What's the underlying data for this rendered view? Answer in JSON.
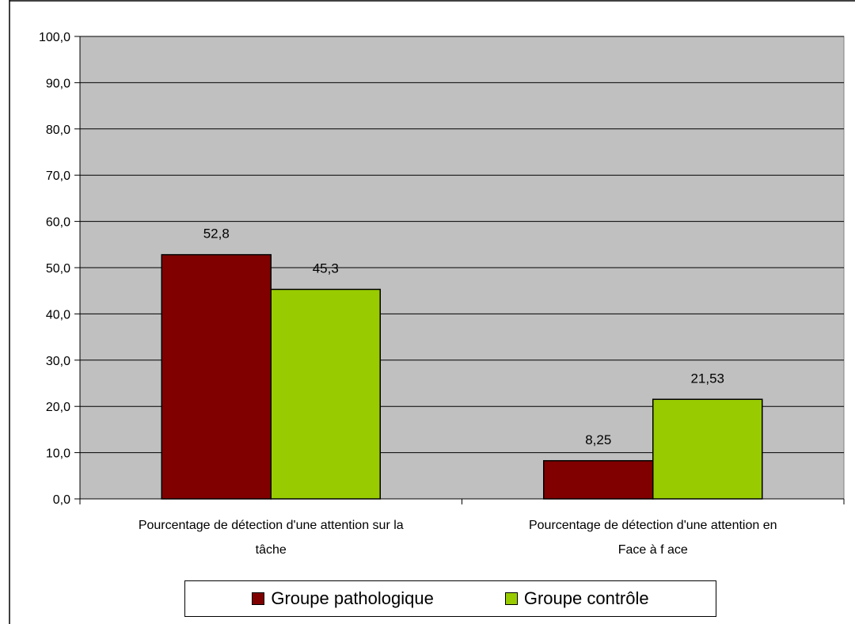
{
  "chart_data": {
    "type": "bar",
    "categories": [
      [
        "Pourcentage de détection d'une attention sur la",
        "tâche"
      ],
      [
        "Pourcentage de détection d'une attention en",
        "Face à f ace"
      ]
    ],
    "series": [
      {
        "name": "Groupe pathologique",
        "color": "#800000",
        "values": [
          52.8,
          8.25
        ],
        "labels": [
          "52,8",
          "8,25"
        ]
      },
      {
        "name": "Groupe contrôle",
        "color": "#99CC00",
        "values": [
          45.3,
          21.53
        ],
        "labels": [
          "45,3",
          "21,53"
        ]
      }
    ],
    "ylim": [
      0,
      100
    ],
    "yticks": [
      {
        "value": 0,
        "label": "0,0"
      },
      {
        "value": 10,
        "label": "10,0"
      },
      {
        "value": 20,
        "label": "20,0"
      },
      {
        "value": 30,
        "label": "30,0"
      },
      {
        "value": 40,
        "label": "40,0"
      },
      {
        "value": 50,
        "label": "50,0"
      },
      {
        "value": 60,
        "label": "60,0"
      },
      {
        "value": 70,
        "label": "70,0"
      },
      {
        "value": 80,
        "label": "80,0"
      },
      {
        "value": 90,
        "label": "90,0"
      },
      {
        "value": 100,
        "label": "100,0"
      }
    ],
    "grid": true,
    "plot_background": "#C0C0C0",
    "legend_position": "bottom",
    "title": "",
    "xlabel": "",
    "ylabel": ""
  },
  "legend": {
    "items": [
      {
        "label": "Groupe pathologique",
        "color": "#800000"
      },
      {
        "label": "Groupe contrôle",
        "color": "#99CC00"
      }
    ]
  }
}
